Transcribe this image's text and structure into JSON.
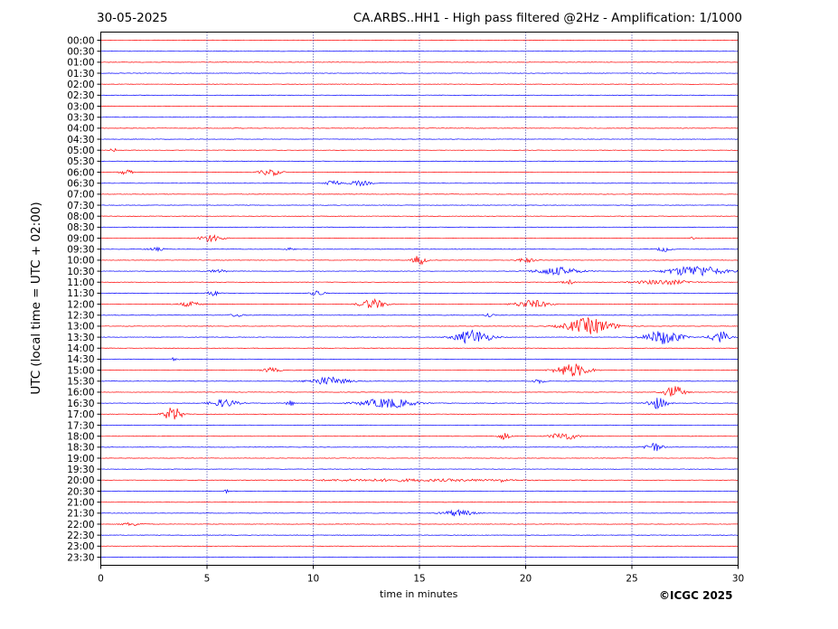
{
  "header": {
    "date": "30-05-2025",
    "station_title": "CA.ARBS..HH1 - High pass filtered @2Hz - Amplification: 1/1000"
  },
  "footer": {
    "copyright": "©ICGC 2025"
  },
  "chart_data": {
    "type": "line",
    "title": "CA.ARBS..HH1 - High pass filtered @2Hz - Amplification: 1/1000",
    "xlabel": "time in minutes",
    "ylabel": "UTC (local time = UTC + 02:00)",
    "xlim": [
      0,
      30
    ],
    "x_ticks": [
      0,
      5,
      10,
      15,
      20,
      25,
      30
    ],
    "grid": "vertical dotted at x ticks",
    "colors": {
      "even_trace": "#ff0000",
      "odd_trace": "#0000ff",
      "grid": "#00008b"
    },
    "series": [
      {
        "label": "00:00",
        "bursts": []
      },
      {
        "label": "00:30",
        "bursts": []
      },
      {
        "label": "01:00",
        "bursts": []
      },
      {
        "label": "01:30",
        "bursts": []
      },
      {
        "label": "02:00",
        "bursts": []
      },
      {
        "label": "02:30",
        "bursts": []
      },
      {
        "label": "03:00",
        "bursts": []
      },
      {
        "label": "03:30",
        "bursts": []
      },
      {
        "label": "04:00",
        "bursts": []
      },
      {
        "label": "04:30",
        "bursts": []
      },
      {
        "label": "05:00",
        "bursts": [
          [
            0.6,
            0.4,
            0.2
          ]
        ]
      },
      {
        "label": "05:30",
        "bursts": []
      },
      {
        "label": "06:00",
        "bursts": [
          [
            1.2,
            0.6,
            0.3
          ],
          [
            8.0,
            1.0,
            0.4
          ]
        ]
      },
      {
        "label": "06:30",
        "bursts": [
          [
            10.9,
            0.6,
            0.5
          ],
          [
            12.2,
            1.0,
            0.3
          ]
        ]
      },
      {
        "label": "07:00",
        "bursts": []
      },
      {
        "label": "07:30",
        "bursts": []
      },
      {
        "label": "08:00",
        "bursts": []
      },
      {
        "label": "08:30",
        "bursts": []
      },
      {
        "label": "09:00",
        "bursts": [
          [
            5.2,
            1.0,
            0.5
          ],
          [
            27.9,
            0.4,
            0.2
          ]
        ]
      },
      {
        "label": "09:30",
        "bursts": [
          [
            2.6,
            0.8,
            0.2
          ],
          [
            8.9,
            0.4,
            0.2
          ],
          [
            26.5,
            0.6,
            0.3
          ]
        ]
      },
      {
        "label": "10:00",
        "bursts": [
          [
            15.0,
            0.6,
            0.6
          ],
          [
            20.0,
            0.8,
            0.3
          ]
        ]
      },
      {
        "label": "10:30",
        "bursts": [
          [
            5.5,
            0.8,
            0.2
          ],
          [
            21.5,
            2.0,
            0.5
          ],
          [
            28.0,
            2.5,
            0.7
          ]
        ]
      },
      {
        "label": "11:00",
        "bursts": [
          [
            22.0,
            0.5,
            0.3
          ],
          [
            26.5,
            2.5,
            0.3
          ]
        ]
      },
      {
        "label": "11:30",
        "bursts": [
          [
            5.3,
            0.6,
            0.3
          ],
          [
            10.2,
            0.6,
            0.4
          ]
        ]
      },
      {
        "label": "12:00",
        "bursts": [
          [
            4.2,
            1.0,
            0.3
          ],
          [
            12.8,
            1.2,
            0.6
          ],
          [
            20.3,
            1.5,
            0.5
          ]
        ]
      },
      {
        "label": "12:30",
        "bursts": [
          [
            6.4,
            0.6,
            0.2
          ],
          [
            18.3,
            0.4,
            0.2
          ]
        ]
      },
      {
        "label": "13:00",
        "bursts": [
          [
            23.0,
            2.2,
            1.0
          ]
        ]
      },
      {
        "label": "13:30",
        "bursts": [
          [
            17.5,
            1.6,
            0.9
          ],
          [
            26.5,
            1.6,
            0.9
          ],
          [
            29.1,
            0.8,
            0.8
          ]
        ]
      },
      {
        "label": "14:00",
        "bursts": []
      },
      {
        "label": "14:30",
        "bursts": [
          [
            3.5,
            0.3,
            0.3
          ]
        ]
      },
      {
        "label": "15:00",
        "bursts": [
          [
            8.0,
            0.8,
            0.3
          ],
          [
            22.2,
            1.6,
            0.8
          ]
        ]
      },
      {
        "label": "15:30",
        "bursts": [
          [
            10.7,
            1.8,
            0.5
          ],
          [
            20.6,
            0.5,
            0.3
          ]
        ]
      },
      {
        "label": "16:00",
        "bursts": [
          [
            27.0,
            0.9,
            0.8
          ]
        ]
      },
      {
        "label": "16:30",
        "bursts": [
          [
            5.8,
            1.2,
            0.5
          ],
          [
            8.9,
            0.3,
            0.5
          ],
          [
            13.5,
            2.5,
            0.6
          ],
          [
            26.2,
            0.9,
            0.7
          ]
        ]
      },
      {
        "label": "17:00",
        "bursts": [
          [
            3.4,
            0.8,
            0.9
          ]
        ]
      },
      {
        "label": "17:30",
        "bursts": []
      },
      {
        "label": "18:00",
        "bursts": [
          [
            19.0,
            0.5,
            0.5
          ],
          [
            21.8,
            1.2,
            0.5
          ]
        ]
      },
      {
        "label": "18:30",
        "bursts": [
          [
            26.0,
            0.8,
            0.6
          ]
        ]
      },
      {
        "label": "19:00",
        "bursts": []
      },
      {
        "label": "19:30",
        "bursts": []
      },
      {
        "label": "20:00",
        "bursts": [
          [
            14.5,
            10.0,
            0.15
          ],
          [
            18.9,
            0.2,
            0.3
          ]
        ]
      },
      {
        "label": "20:30",
        "bursts": [
          [
            5.9,
            0.2,
            0.2
          ]
        ]
      },
      {
        "label": "21:00",
        "bursts": []
      },
      {
        "label": "21:30",
        "bursts": [
          [
            16.8,
            1.4,
            0.4
          ]
        ]
      },
      {
        "label": "22:00",
        "bursts": [
          [
            1.5,
            1.0,
            0.2
          ]
        ]
      },
      {
        "label": "22:30",
        "bursts": []
      },
      {
        "label": "23:00",
        "bursts": []
      },
      {
        "label": "23:30",
        "bursts": []
      }
    ]
  }
}
